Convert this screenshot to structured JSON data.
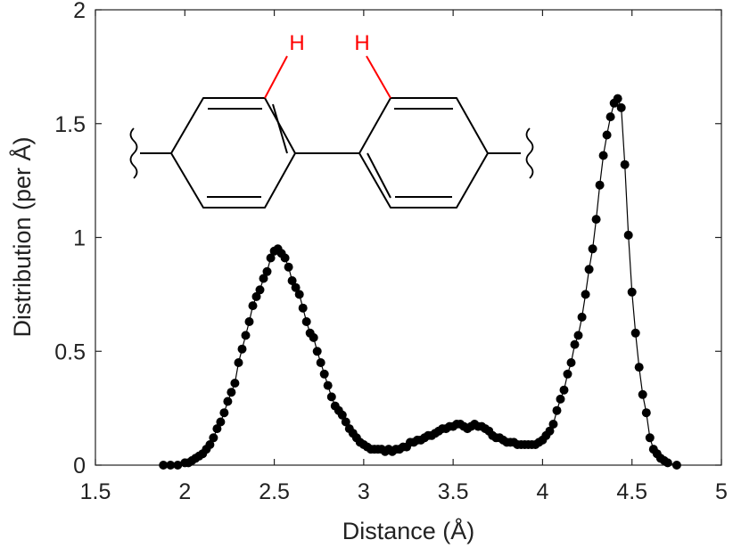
{
  "chart_data": {
    "type": "line",
    "xlabel": "Distance (Å)",
    "ylabel": "Distribution (per Å)",
    "xlim": [
      1.5,
      5
    ],
    "ylim": [
      0,
      2
    ],
    "x_ticks": [
      "1.5",
      "2",
      "2.5",
      "3",
      "3.5",
      "4",
      "4.5",
      "5"
    ],
    "y_ticks": [
      "0",
      "0.5",
      "1",
      "1.5",
      "2"
    ],
    "grid": false,
    "line_color": "#000000",
    "marker": "filled-circle",
    "series": [
      {
        "x": [
          1.88,
          1.92,
          1.96,
          2.0,
          2.02,
          2.04,
          2.06,
          2.08,
          2.1,
          2.12,
          2.14,
          2.16,
          2.18,
          2.2,
          2.22,
          2.24,
          2.26,
          2.28,
          2.3,
          2.32,
          2.34,
          2.36,
          2.38,
          2.4,
          2.42,
          2.44,
          2.46,
          2.48,
          2.5,
          2.52,
          2.54,
          2.56,
          2.58,
          2.6,
          2.62,
          2.64,
          2.66,
          2.68,
          2.7,
          2.72,
          2.74,
          2.76,
          2.78,
          2.8,
          2.82,
          2.84,
          2.86,
          2.88,
          2.9,
          2.92,
          2.94,
          2.96,
          2.98,
          3.0,
          3.02,
          3.04,
          3.06,
          3.08,
          3.1,
          3.12,
          3.14,
          3.16,
          3.18,
          3.2,
          3.22,
          3.24,
          3.26,
          3.28,
          3.3,
          3.32,
          3.34,
          3.36,
          3.38,
          3.4,
          3.42,
          3.44,
          3.46,
          3.48,
          3.5,
          3.52,
          3.54,
          3.56,
          3.58,
          3.6,
          3.62,
          3.64,
          3.66,
          3.68,
          3.7,
          3.72,
          3.74,
          3.76,
          3.78,
          3.8,
          3.82,
          3.84,
          3.86,
          3.88,
          3.9,
          3.92,
          3.94,
          3.96,
          3.98,
          4.0,
          4.02,
          4.04,
          4.06,
          4.08,
          4.1,
          4.12,
          4.14,
          4.16,
          4.18,
          4.2,
          4.22,
          4.24,
          4.26,
          4.28,
          4.3,
          4.32,
          4.34,
          4.36,
          4.38,
          4.4,
          4.42,
          4.44,
          4.46,
          4.48,
          4.5,
          4.52,
          4.54,
          4.56,
          4.58,
          4.6,
          4.62,
          4.64,
          4.66,
          4.68,
          4.7,
          4.75
        ],
        "y": [
          0.0,
          0.0,
          0.0,
          0.01,
          0.01,
          0.02,
          0.03,
          0.04,
          0.05,
          0.07,
          0.09,
          0.12,
          0.16,
          0.19,
          0.23,
          0.28,
          0.32,
          0.36,
          0.45,
          0.51,
          0.57,
          0.63,
          0.7,
          0.74,
          0.77,
          0.82,
          0.85,
          0.91,
          0.94,
          0.95,
          0.93,
          0.91,
          0.87,
          0.81,
          0.78,
          0.75,
          0.69,
          0.63,
          0.58,
          0.56,
          0.5,
          0.45,
          0.4,
          0.35,
          0.3,
          0.26,
          0.24,
          0.22,
          0.19,
          0.16,
          0.14,
          0.12,
          0.1,
          0.09,
          0.08,
          0.07,
          0.07,
          0.07,
          0.07,
          0.06,
          0.07,
          0.06,
          0.07,
          0.07,
          0.08,
          0.08,
          0.1,
          0.1,
          0.11,
          0.11,
          0.12,
          0.13,
          0.13,
          0.14,
          0.15,
          0.16,
          0.16,
          0.17,
          0.17,
          0.18,
          0.18,
          0.17,
          0.16,
          0.17,
          0.18,
          0.17,
          0.17,
          0.16,
          0.15,
          0.13,
          0.12,
          0.12,
          0.11,
          0.1,
          0.1,
          0.1,
          0.09,
          0.09,
          0.09,
          0.09,
          0.09,
          0.09,
          0.1,
          0.11,
          0.13,
          0.15,
          0.18,
          0.24,
          0.29,
          0.33,
          0.4,
          0.45,
          0.53,
          0.57,
          0.65,
          0.75,
          0.86,
          0.95,
          1.08,
          1.23,
          1.36,
          1.45,
          1.53,
          1.59,
          1.61,
          1.57,
          1.32,
          1.01,
          0.76,
          0.58,
          0.43,
          0.31,
          0.23,
          0.12,
          0.07,
          0.05,
          0.03,
          0.02,
          0.01,
          0.0
        ]
      }
    ]
  },
  "inset": {
    "h_label": "H",
    "h_color": "#ff0000"
  }
}
